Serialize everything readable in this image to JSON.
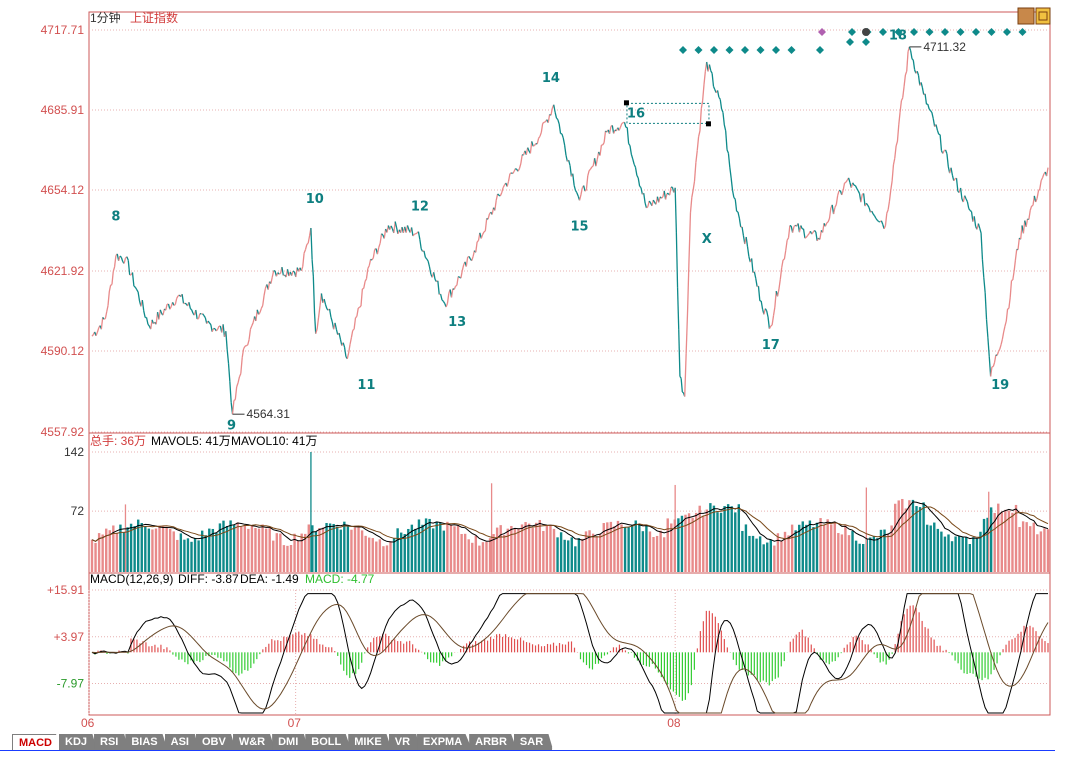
{
  "header": {
    "period": "1分钟",
    "index_name": "上证指数"
  },
  "price_axis": {
    "ticks": [
      "4717.71",
      "4685.91",
      "4654.12",
      "4621.92",
      "4590.12",
      "4557.92"
    ],
    "min": 4557.92,
    "max": 4717.71
  },
  "volume_info": {
    "total": "总手: 36万",
    "mavol5": "MAVOL5: 41万",
    "mavol10": "MAVOL10: 41万"
  },
  "volume_axis": {
    "ticks": [
      "142",
      "72"
    ],
    "max": 142
  },
  "macd_info": {
    "title": "MACD(12,26,9)",
    "diff": "DIFF: -3.87",
    "dea": "DEA: -1.49",
    "macd": "MACD: -4.77"
  },
  "macd_axis": {
    "ticks": [
      "+15.91",
      "+3.97",
      "-7.97"
    ],
    "min": -16,
    "max": 15.91
  },
  "date_ticks": [
    "06",
    "07",
    "08"
  ],
  "tabs": [
    "MACD",
    "KDJ",
    "RSI",
    "BIAS",
    "ASI",
    "OBV",
    "W&R",
    "DMI",
    "BOLL",
    "MIKE",
    "VR",
    "EXPMA",
    "ARBR",
    "SAR"
  ],
  "active_tab": "MACD",
  "colors": {
    "up": "#e88a8a",
    "down": "#0e8a8a",
    "label": "#0e7f80",
    "axis": "#cc5a5a",
    "macd_pos": "#e05050",
    "macd_neg": "#33cc33"
  },
  "chart_data": {
    "type": "line",
    "title": "上证指数 1分钟",
    "price": [
      {
        "x": 0,
        "y": 4596
      },
      {
        "x": 0.014,
        "y": 4603
      },
      {
        "x": 0.025,
        "y": 4628
      },
      {
        "x": 0.035,
        "y": 4627
      },
      {
        "x": 0.06,
        "y": 4600
      },
      {
        "x": 0.09,
        "y": 4612
      },
      {
        "x": 0.12,
        "y": 4601
      },
      {
        "x": 0.14,
        "y": 4598
      },
      {
        "x": 0.147,
        "y": 4565
      },
      {
        "x": 0.16,
        "y": 4592
      },
      {
        "x": 0.19,
        "y": 4622
      },
      {
        "x": 0.219,
        "y": 4622
      },
      {
        "x": 0.229,
        "y": 4639
      },
      {
        "x": 0.234,
        "y": 4597
      },
      {
        "x": 0.24,
        "y": 4613
      },
      {
        "x": 0.267,
        "y": 4587
      },
      {
        "x": 0.29,
        "y": 4624
      },
      {
        "x": 0.31,
        "y": 4640
      },
      {
        "x": 0.34,
        "y": 4637
      },
      {
        "x": 0.369,
        "y": 4609
      },
      {
        "x": 0.4,
        "y": 4630
      },
      {
        "x": 0.43,
        "y": 4655
      },
      {
        "x": 0.47,
        "y": 4677
      },
      {
        "x": 0.483,
        "y": 4688
      },
      {
        "x": 0.51,
        "y": 4650
      },
      {
        "x": 0.54,
        "y": 4678
      },
      {
        "x": 0.557,
        "y": 4681
      },
      {
        "x": 0.58,
        "y": 4647
      },
      {
        "x": 0.61,
        "y": 4655
      },
      {
        "x": 0.615,
        "y": 4580
      },
      {
        "x": 0.62,
        "y": 4572
      },
      {
        "x": 0.626,
        "y": 4645
      },
      {
        "x": 0.643,
        "y": 4705
      },
      {
        "x": 0.66,
        "y": 4685
      },
      {
        "x": 0.67,
        "y": 4654
      },
      {
        "x": 0.7,
        "y": 4610
      },
      {
        "x": 0.71,
        "y": 4600
      },
      {
        "x": 0.73,
        "y": 4640
      },
      {
        "x": 0.76,
        "y": 4635
      },
      {
        "x": 0.79,
        "y": 4658
      },
      {
        "x": 0.83,
        "y": 4640
      },
      {
        "x": 0.855,
        "y": 4711
      },
      {
        "x": 0.87,
        "y": 4692
      },
      {
        "x": 0.9,
        "y": 4660
      },
      {
        "x": 0.93,
        "y": 4637
      },
      {
        "x": 0.94,
        "y": 4580
      },
      {
        "x": 0.955,
        "y": 4600
      },
      {
        "x": 0.97,
        "y": 4635
      },
      {
        "x": 1.0,
        "y": 4663
      }
    ],
    "annotations": [
      {
        "label": "8",
        "x": 0.025,
        "y": 4642
      },
      {
        "label": "9",
        "x": 0.146,
        "y": 4559
      },
      {
        "label": "10",
        "x": 0.233,
        "y": 4649
      },
      {
        "label": "11",
        "x": 0.287,
        "y": 4575
      },
      {
        "label": "12",
        "x": 0.343,
        "y": 4646
      },
      {
        "label": "13",
        "x": 0.382,
        "y": 4600
      },
      {
        "label": "14",
        "x": 0.48,
        "y": 4697
      },
      {
        "label": "15",
        "x": 0.51,
        "y": 4638
      },
      {
        "label": "16",
        "x": 0.569,
        "y": 4683
      },
      {
        "label": "X",
        "x": 0.643,
        "y": 4633
      },
      {
        "label": "17",
        "x": 0.71,
        "y": 4591
      },
      {
        "label": "18",
        "x": 0.843,
        "y": 4714
      },
      {
        "label": "19",
        "x": 0.95,
        "y": 4575
      }
    ],
    "extreme_labels": [
      {
        "text": "4564.31",
        "x": 0.147,
        "y": 4565
      },
      {
        "text": "4711.32",
        "x": 0.855,
        "y": 4711
      }
    ],
    "volume_spikes": [
      {
        "x": 0.035,
        "v": 80
      },
      {
        "x": 0.229,
        "v": 142
      },
      {
        "x": 0.418,
        "v": 105
      },
      {
        "x": 0.61,
        "v": 103
      },
      {
        "x": 0.81,
        "v": 100
      },
      {
        "x": 0.938,
        "v": 95
      }
    ],
    "macd_peaks": [
      {
        "x": 0.04,
        "v": 3.2
      },
      {
        "x": 0.07,
        "v": 1.5
      },
      {
        "x": 0.1,
        "v": -2.6
      },
      {
        "x": 0.13,
        "v": -0.8
      },
      {
        "x": 0.155,
        "v": -5.5
      },
      {
        "x": 0.19,
        "v": 3
      },
      {
        "x": 0.22,
        "v": 4.8
      },
      {
        "x": 0.25,
        "v": 1
      },
      {
        "x": 0.27,
        "v": -6
      },
      {
        "x": 0.3,
        "v": 4.5
      },
      {
        "x": 0.33,
        "v": 2.5
      },
      {
        "x": 0.36,
        "v": -3
      },
      {
        "x": 0.4,
        "v": 2.5
      },
      {
        "x": 0.43,
        "v": 4.5
      },
      {
        "x": 0.47,
        "v": 1.5
      },
      {
        "x": 0.5,
        "v": 2.5
      },
      {
        "x": 0.52,
        "v": -4
      },
      {
        "x": 0.55,
        "v": 1.5
      },
      {
        "x": 0.58,
        "v": -3
      },
      {
        "x": 0.62,
        "v": -12
      },
      {
        "x": 0.645,
        "v": 11
      },
      {
        "x": 0.68,
        "v": -5
      },
      {
        "x": 0.71,
        "v": -8
      },
      {
        "x": 0.74,
        "v": 5.5
      },
      {
        "x": 0.77,
        "v": -3
      },
      {
        "x": 0.8,
        "v": 4
      },
      {
        "x": 0.83,
        "v": -3
      },
      {
        "x": 0.855,
        "v": 12
      },
      {
        "x": 0.89,
        "v": 1
      },
      {
        "x": 0.915,
        "v": -5
      },
      {
        "x": 0.935,
        "v": -7
      },
      {
        "x": 0.96,
        "v": 3
      },
      {
        "x": 0.98,
        "v": 7
      },
      {
        "x": 1.0,
        "v": 2
      }
    ]
  }
}
